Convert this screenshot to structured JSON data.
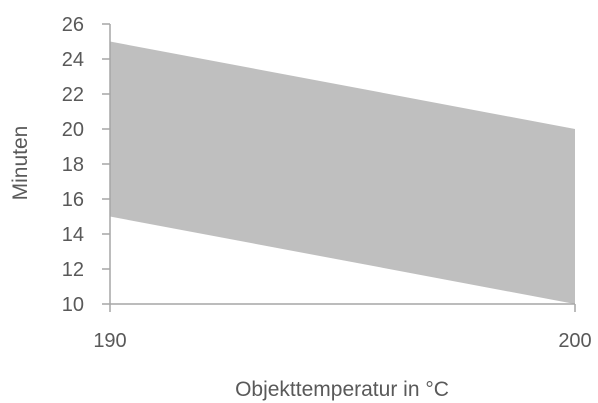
{
  "chart_data": {
    "type": "area",
    "title": "",
    "xlabel": "Objekttemperatur in °C",
    "ylabel": "Minuten",
    "x": [
      190,
      200
    ],
    "series": [
      {
        "lower": [
          15,
          10
        ],
        "upper": [
          25,
          20
        ]
      }
    ],
    "xlim": [
      190,
      200
    ],
    "ylim": [
      10,
      26
    ],
    "x_ticks": [
      "190",
      "200"
    ],
    "y_ticks": [
      "10",
      "12",
      "14",
      "16",
      "18",
      "20",
      "22",
      "24",
      "26"
    ],
    "grid": false,
    "colors": {
      "band": "#bfbfbf",
      "axis": "#a6a6a6",
      "text": "#595959"
    }
  }
}
